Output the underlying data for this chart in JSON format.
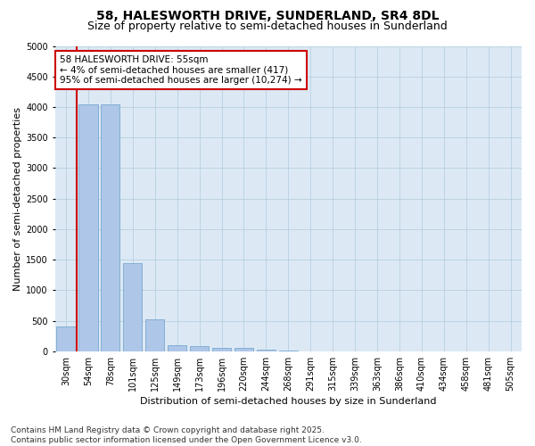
{
  "title": "58, HALESWORTH DRIVE, SUNDERLAND, SR4 8DL",
  "subtitle": "Size of property relative to semi-detached houses in Sunderland",
  "xlabel": "Distribution of semi-detached houses by size in Sunderland",
  "ylabel": "Number of semi-detached properties",
  "bar_color": "#aec6e8",
  "bar_edge_color": "#6a9fc8",
  "background_color": "#dce9f5",
  "categories": [
    "30sqm",
    "54sqm",
    "78sqm",
    "101sqm",
    "125sqm",
    "149sqm",
    "173sqm",
    "196sqm",
    "220sqm",
    "244sqm",
    "268sqm",
    "291sqm",
    "315sqm",
    "339sqm",
    "363sqm",
    "386sqm",
    "410sqm",
    "434sqm",
    "458sqm",
    "481sqm",
    "505sqm"
  ],
  "values": [
    400,
    4050,
    4050,
    1450,
    530,
    100,
    80,
    60,
    50,
    30,
    10,
    3,
    1,
    0,
    0,
    0,
    0,
    0,
    0,
    0,
    0
  ],
  "ylim": [
    0,
    5000
  ],
  "yticks": [
    0,
    500,
    1000,
    1500,
    2000,
    2500,
    3000,
    3500,
    4000,
    4500,
    5000
  ],
  "vline_color": "#cc0000",
  "vline_pos": 0.5,
  "annotation_title": "58 HALESWORTH DRIVE: 55sqm",
  "annotation_line1": "← 4% of semi-detached houses are smaller (417)",
  "annotation_line2": "95% of semi-detached houses are larger (10,274) →",
  "annotation_box_color": "#cc0000",
  "footer_line1": "Contains HM Land Registry data © Crown copyright and database right 2025.",
  "footer_line2": "Contains public sector information licensed under the Open Government Licence v3.0.",
  "title_fontsize": 10,
  "subtitle_fontsize": 9,
  "axis_label_fontsize": 8,
  "tick_fontsize": 7,
  "annotation_fontsize": 7.5,
  "footer_fontsize": 6.5
}
